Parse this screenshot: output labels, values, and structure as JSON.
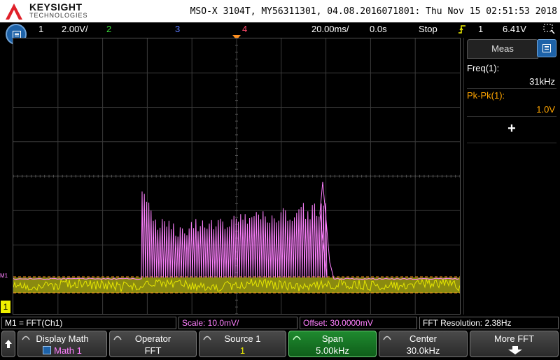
{
  "header": {
    "brand": "KEYSIGHT",
    "brand_sub": "TECHNOLOGIES",
    "title": "MSO-X 3104T, MY56311301, 04.08.2016071801: Thu Nov 15 02:51:53 2018"
  },
  "status": {
    "ch1_num": "1",
    "ch1_scale": "2.00V/",
    "ch2_num": "2",
    "ch3_num": "3",
    "ch4_num": "4",
    "timebase": "20.00ms/",
    "delay": "0.0s",
    "run_state": "Stop",
    "trig_source": "1",
    "trig_level": "6.41V",
    "colors": {
      "ch1": "#f0f000",
      "ch2": "#3cdc3c",
      "ch3": "#5a7aff",
      "ch4": "#ff4a6a",
      "math": "#ff80ff"
    }
  },
  "meas_panel": {
    "tab_label": "Meas",
    "items": [
      {
        "label": "Freq(1):",
        "value": "31kHz",
        "color": "#ffffff"
      },
      {
        "label": "Pk-Pk(1):",
        "value": "1.0V",
        "color": "#ffa500"
      }
    ],
    "add_label": "+"
  },
  "markers": {
    "math_marker": "M1",
    "ch1_marker": "1"
  },
  "info": {
    "math_def": "M1 = FFT(Ch1)",
    "scale": "Scale: 10.0mV/",
    "offset": "Offset: 30.0000mV",
    "resolution": "FFT Resolution: 2.38Hz"
  },
  "softkeys": [
    {
      "title": "Display Math",
      "value": "Math 1"
    },
    {
      "title": "Operator",
      "value": "FFT"
    },
    {
      "title": "Source 1",
      "value": "1"
    },
    {
      "title": "Span",
      "value": "5.00kHz"
    },
    {
      "title": "Center",
      "value": "30.0kHz"
    },
    {
      "title": "More FFT",
      "value": ""
    }
  ]
}
